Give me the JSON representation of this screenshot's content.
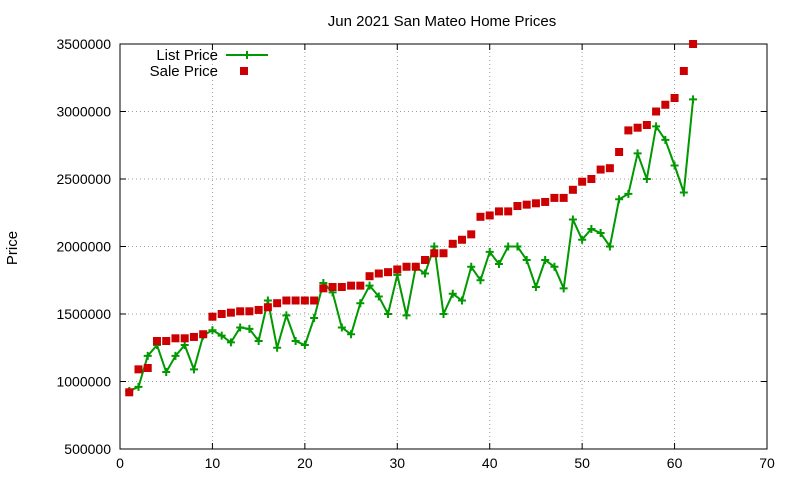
{
  "chart_data": {
    "type": "line",
    "title": "Jun 2021 San Mateo Home Prices",
    "xlabel": "",
    "ylabel": "Price",
    "xlim": [
      0,
      70
    ],
    "ylim": [
      500000,
      3500000
    ],
    "x_ticks": [
      0,
      10,
      20,
      30,
      40,
      50,
      60,
      70
    ],
    "y_ticks": [
      500000,
      1000000,
      1500000,
      2000000,
      2500000,
      3000000,
      3500000
    ],
    "grid": true,
    "legend_position": "top-left",
    "series": [
      {
        "name": "List Price",
        "style": "line-with-plus-markers",
        "color": "#009900",
        "x": [
          1,
          2,
          3,
          4,
          5,
          6,
          7,
          8,
          9,
          10,
          11,
          12,
          13,
          14,
          15,
          16,
          17,
          18,
          19,
          20,
          21,
          22,
          23,
          24,
          25,
          26,
          27,
          28,
          29,
          30,
          31,
          32,
          33,
          34,
          35,
          36,
          37,
          38,
          39,
          40,
          41,
          42,
          43,
          44,
          45,
          46,
          47,
          48,
          49,
          50,
          51,
          52,
          53,
          54,
          55,
          56,
          57,
          58,
          59,
          60,
          61,
          62
        ],
        "values": [
          930000,
          960000,
          1190000,
          1270000,
          1070000,
          1190000,
          1270000,
          1090000,
          1340000,
          1380000,
          1340000,
          1290000,
          1400000,
          1390000,
          1300000,
          1600000,
          1250000,
          1490000,
          1300000,
          1270000,
          1470000,
          1730000,
          1660000,
          1400000,
          1350000,
          1580000,
          1710000,
          1630000,
          1500000,
          1790000,
          1490000,
          1850000,
          1800000,
          2000000,
          1500000,
          1650000,
          1600000,
          1850000,
          1750000,
          1960000,
          1870000,
          2000000,
          2000000,
          1900000,
          1700000,
          1900000,
          1850000,
          1690000,
          2200000,
          2050000,
          2130000,
          2100000,
          2000000,
          2350000,
          2390000,
          2690000,
          2500000,
          2890000,
          2790000,
          2600000,
          2400000,
          3090000
        ]
      },
      {
        "name": "Sale Price",
        "style": "square-markers",
        "color": "#cc0000",
        "x": [
          1,
          2,
          3,
          4,
          5,
          6,
          7,
          8,
          9,
          10,
          11,
          12,
          13,
          14,
          15,
          16,
          17,
          18,
          19,
          20,
          21,
          22,
          23,
          24,
          25,
          26,
          27,
          28,
          29,
          30,
          31,
          32,
          33,
          34,
          35,
          36,
          37,
          38,
          39,
          40,
          41,
          42,
          43,
          44,
          45,
          46,
          47,
          48,
          49,
          50,
          51,
          52,
          53,
          54,
          55,
          56,
          57,
          58,
          59,
          60,
          61,
          62
        ],
        "values": [
          920000,
          1090000,
          1100000,
          1300000,
          1300000,
          1320000,
          1320000,
          1330000,
          1350000,
          1480000,
          1500000,
          1510000,
          1520000,
          1520000,
          1530000,
          1550000,
          1580000,
          1600000,
          1600000,
          1600000,
          1600000,
          1690000,
          1700000,
          1700000,
          1710000,
          1710000,
          1780000,
          1800000,
          1810000,
          1830000,
          1850000,
          1850000,
          1900000,
          1950000,
          1950000,
          2020000,
          2050000,
          2090000,
          2220000,
          2230000,
          2260000,
          2260000,
          2300000,
          2310000,
          2320000,
          2330000,
          2360000,
          2360000,
          2420000,
          2480000,
          2500000,
          2570000,
          2580000,
          2700000,
          2860000,
          2880000,
          2900000,
          3000000,
          3050000,
          3100000,
          3300000,
          3500000
        ]
      }
    ]
  }
}
